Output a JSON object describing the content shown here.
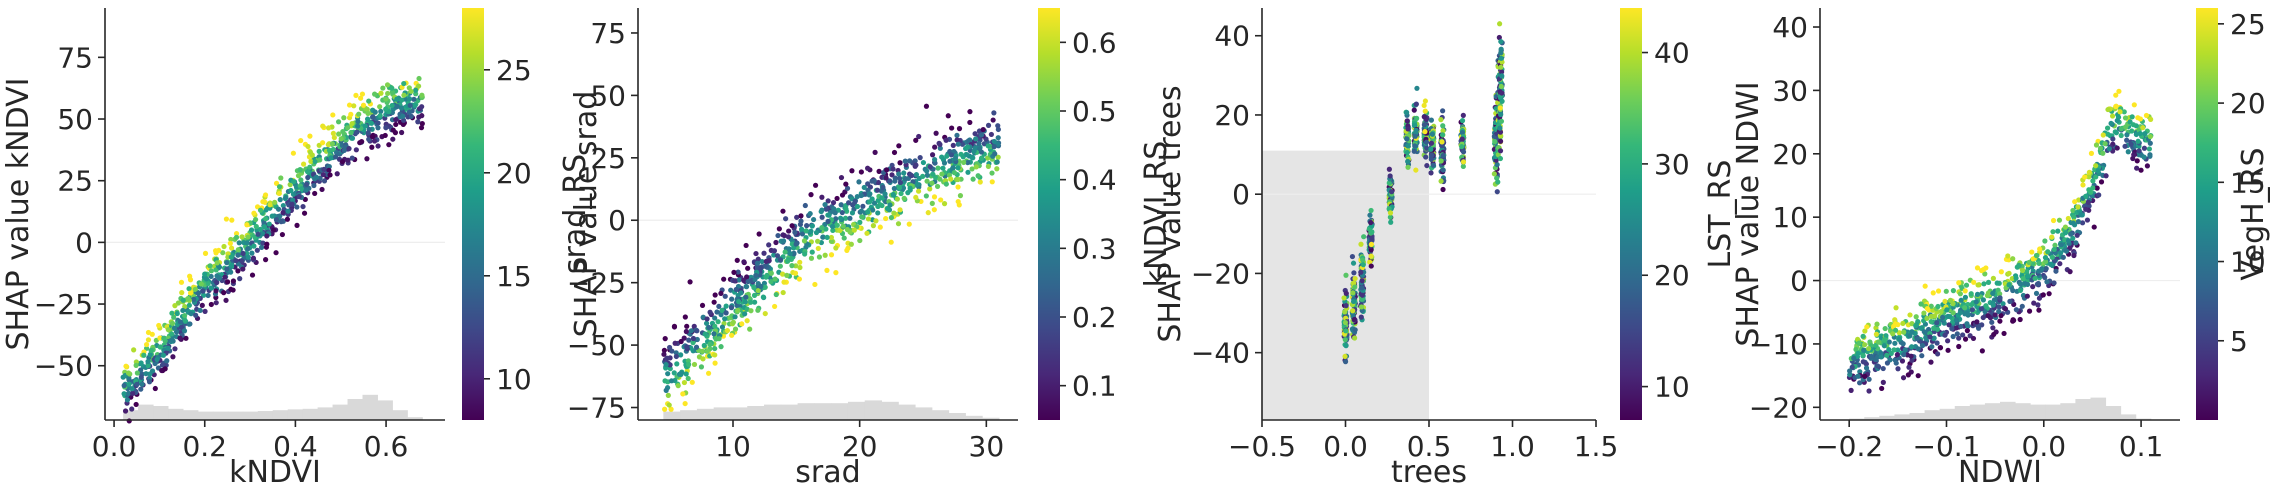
{
  "colors": {
    "viridis": [
      "#440154",
      "#482878",
      "#3e4989",
      "#31688e",
      "#26828e",
      "#1f9e89",
      "#35b779",
      "#6ece58",
      "#b5de2b",
      "#fde725"
    ],
    "histogram": "#d9d9d9",
    "shade": "#e5e5e5",
    "zero_line": "#eeeeee"
  },
  "chart_data": [
    {
      "type": "scatter",
      "xlabel": "kNDVI",
      "ylabel": "SHAP value kNDVI",
      "colorbar_label": "srad_RS",
      "xlim": [
        -0.02,
        0.73
      ],
      "ylim": [
        -72,
        95
      ],
      "xticks": [
        0.0,
        0.2,
        0.4,
        0.6
      ],
      "xtick_labels": [
        "0.0",
        "0.2",
        "0.4",
        "0.6"
      ],
      "yticks": [
        -50,
        -25,
        0,
        25,
        50,
        75
      ],
      "ytick_labels": [
        "−50",
        "−25",
        "0",
        "25",
        "50",
        "75"
      ],
      "cb_range": [
        8,
        28
      ],
      "cb_ticks": [
        10,
        15,
        20,
        25
      ],
      "cb_tick_labels": [
        "10",
        "15",
        "20",
        "25"
      ],
      "x_range": [
        0.02,
        0.68
      ],
      "trend": [
        [
          0.02,
          -60
        ],
        [
          0.1,
          -45
        ],
        [
          0.2,
          -18
        ],
        [
          0.3,
          0
        ],
        [
          0.4,
          22
        ],
        [
          0.5,
          40
        ],
        [
          0.6,
          55
        ],
        [
          0.68,
          58
        ]
      ],
      "spread": 9,
      "color_slope": 22,
      "hist": [
        0.35,
        0.55,
        0.5,
        0.4,
        0.35,
        0.3,
        0.3,
        0.3,
        0.3,
        0.32,
        0.35,
        0.38,
        0.4,
        0.45,
        0.55,
        0.75,
        0.9,
        0.7,
        0.35,
        0.1
      ],
      "shade_region": null
    },
    {
      "type": "scatter",
      "xlabel": "srad",
      "ylabel": "SHAP value srad",
      "colorbar_label": "kNDVI_RS",
      "xlim": [
        2.5,
        32.5
      ],
      "ylim": [
        -80,
        85
      ],
      "xticks": [
        10,
        20,
        30
      ],
      "xtick_labels": [
        "10",
        "20",
        "30"
      ],
      "yticks": [
        -75,
        -50,
        -25,
        0,
        25,
        50,
        75
      ],
      "ytick_labels": [
        "−75",
        "−50",
        "−25",
        "0",
        "25",
        "50",
        "75"
      ],
      "cb_range": [
        0.05,
        0.65
      ],
      "cb_ticks": [
        0.1,
        0.2,
        0.3,
        0.4,
        0.5,
        0.6
      ],
      "cb_tick_labels": [
        "0.1",
        "0.2",
        "0.3",
        "0.4",
        "0.5",
        "0.6"
      ],
      "x_range": [
        4.5,
        31
      ],
      "trend": [
        [
          4.5,
          -65
        ],
        [
          8,
          -45
        ],
        [
          12,
          -25
        ],
        [
          16,
          -5
        ],
        [
          20,
          5
        ],
        [
          24,
          15
        ],
        [
          28,
          25
        ],
        [
          31,
          30
        ]
      ],
      "spread": 12,
      "color_slope": -30,
      "hist": [
        0.3,
        0.35,
        0.4,
        0.45,
        0.45,
        0.5,
        0.55,
        0.55,
        0.6,
        0.6,
        0.6,
        0.65,
        0.7,
        0.65,
        0.55,
        0.45,
        0.35,
        0.25,
        0.15,
        0.08
      ],
      "shade_region": null
    },
    {
      "type": "scatter",
      "xlabel": "trees",
      "ylabel": "SHAP value trees",
      "colorbar_label": "LST_RS",
      "xlim": [
        -0.5,
        1.5
      ],
      "ylim": [
        -57,
        47
      ],
      "xticks": [
        -0.5,
        0.0,
        0.5,
        1.0,
        1.5
      ],
      "xtick_labels": [
        "−0.5",
        "0.0",
        "0.5",
        "1.0",
        "1.5"
      ],
      "yticks": [
        -40,
        -20,
        0,
        20,
        40
      ],
      "ytick_labels": [
        "−40",
        "−20",
        "0",
        "20",
        "40"
      ],
      "cb_range": [
        7,
        44
      ],
      "cb_ticks": [
        10,
        20,
        30,
        40
      ],
      "cb_tick_labels": [
        "10",
        "20",
        "30",
        "40"
      ],
      "x_range": [
        0.0,
        0.95
      ],
      "discrete": [
        [
          0.0,
          -33,
          8
        ],
        [
          0.05,
          -28,
          8
        ],
        [
          0.1,
          -22,
          8
        ],
        [
          0.15,
          -12,
          6
        ],
        [
          0.27,
          0,
          6
        ],
        [
          0.37,
          14,
          6
        ],
        [
          0.42,
          16,
          6
        ],
        [
          0.48,
          15,
          5
        ],
        [
          0.52,
          12,
          5
        ],
        [
          0.58,
          10,
          7
        ],
        [
          0.7,
          13,
          6
        ],
        [
          0.9,
          14,
          10
        ],
        [
          0.92,
          22,
          12
        ],
        [
          0.93,
          28,
          12
        ]
      ],
      "hist": [],
      "shade_region": {
        "x": [
          -0.5,
          0.5
        ],
        "y": [
          -57,
          11
        ]
      }
    },
    {
      "type": "scatter",
      "xlabel": "NDWI",
      "ylabel": "SHAP value NDWI",
      "colorbar_label": "VegH_RS",
      "xlim": [
        -0.23,
        0.14
      ],
      "ylim": [
        -22,
        43
      ],
      "xticks": [
        -0.2,
        -0.1,
        0.0,
        0.1
      ],
      "xtick_labels": [
        "−0.2",
        "−0.1",
        "0.0",
        "0.1"
      ],
      "yticks": [
        -20,
        -10,
        0,
        10,
        20,
        30,
        40
      ],
      "ytick_labels": [
        "−20",
        "−10",
        "0",
        "10",
        "20",
        "30",
        "40"
      ],
      "cb_range": [
        0,
        26
      ],
      "cb_ticks": [
        5,
        10,
        15,
        20,
        25
      ],
      "cb_tick_labels": [
        "5",
        "10",
        "15",
        "20",
        "25"
      ],
      "x_range": [
        -0.2,
        0.11
      ],
      "trend": [
        [
          -0.2,
          -13
        ],
        [
          -0.15,
          -10
        ],
        [
          -0.1,
          -6
        ],
        [
          -0.05,
          -3
        ],
        [
          0.0,
          2
        ],
        [
          0.03,
          8
        ],
        [
          0.05,
          15
        ],
        [
          0.07,
          24
        ],
        [
          0.1,
          22
        ]
      ],
      "spread": 4,
      "color_slope": 10,
      "hist": [
        0.05,
        0.1,
        0.15,
        0.2,
        0.25,
        0.35,
        0.4,
        0.5,
        0.55,
        0.6,
        0.65,
        0.6,
        0.55,
        0.55,
        0.6,
        0.75,
        0.8,
        0.5,
        0.2,
        0.05
      ],
      "shade_region": null
    }
  ]
}
